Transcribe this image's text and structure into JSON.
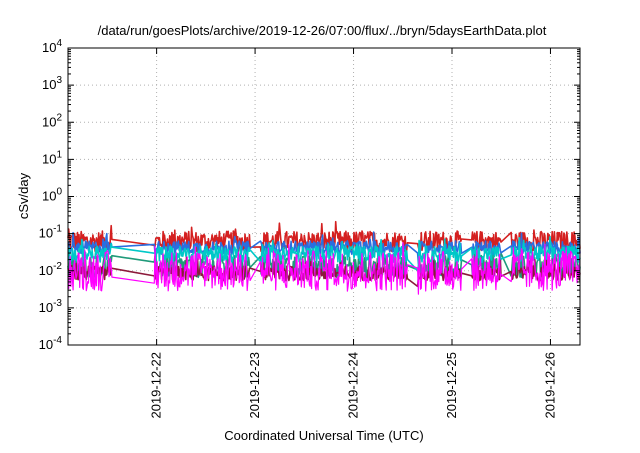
{
  "chart_data": {
    "type": "line",
    "title": "/data/run/goesPlots/archive/2019-12-26/07:00/flux/../bryn/5daysEarthData.plot",
    "xlabel": "Coordinated Universal Time (UTC)",
    "ylabel": "cSv/day",
    "yscale": "log",
    "grid": true,
    "ylim_exp": [
      -4,
      4
    ],
    "xlim_day": [
      21.1,
      26.3
    ],
    "ytick_exponents": [
      -4,
      -3,
      -2,
      -1,
      0,
      1,
      2,
      3,
      4
    ],
    "xticks": [
      {
        "label": "2019-12-22",
        "day": 22
      },
      {
        "label": "2019-12-23",
        "day": 23
      },
      {
        "label": "2019-12-24",
        "day": 24
      },
      {
        "label": "2019-12-25",
        "day": 25
      },
      {
        "label": "2019-12-26",
        "day": 26
      }
    ],
    "gaps": [
      [
        21.55,
        21.97
      ],
      [
        22.95,
        23.05
      ],
      [
        24.55,
        24.65
      ],
      [
        25.1,
        25.2
      ],
      [
        25.5,
        25.6
      ]
    ],
    "series": [
      {
        "color": "#d42020",
        "base": 0.062,
        "spread": 0.28
      },
      {
        "color": "#1f9a7a",
        "base": 0.013,
        "spread": 0.3
      },
      {
        "color": "#8b1a3a",
        "base": 0.0085,
        "spread": 0.2
      },
      {
        "color": "#2a6ee0",
        "base": 0.042,
        "spread": 0.18
      },
      {
        "color": "#00c8c8",
        "base": 0.028,
        "spread": 0.22
      },
      {
        "color": "#ff00ff",
        "base": 0.01,
        "spread": 0.55
      }
    ]
  }
}
